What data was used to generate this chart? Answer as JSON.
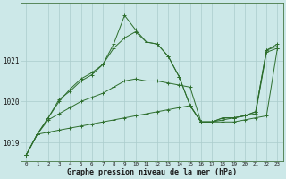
{
  "xlabel": "Graphe pression niveau de la mer (hPa)",
  "background_color": "#cce8e8",
  "grid_color": "#aacccc",
  "line_color": "#2d6e2d",
  "hours": [
    0,
    1,
    2,
    3,
    4,
    5,
    6,
    7,
    8,
    9,
    10,
    11,
    12,
    13,
    14,
    15,
    16,
    17,
    18,
    19,
    20,
    21,
    22,
    23
  ],
  "series": [
    [
      1018.7,
      1019.2,
      1019.25,
      1019.3,
      1019.35,
      1019.4,
      1019.45,
      1019.5,
      1019.55,
      1019.6,
      1019.65,
      1019.7,
      1019.75,
      1019.8,
      1019.85,
      1019.9,
      1019.5,
      1019.5,
      1019.5,
      1019.5,
      1019.55,
      1019.6,
      1019.65,
      1021.3
    ],
    [
      1018.7,
      1019.2,
      1019.55,
      1019.7,
      1019.85,
      1020.0,
      1020.1,
      1020.2,
      1020.35,
      1020.5,
      1020.55,
      1020.5,
      1020.5,
      1020.45,
      1020.4,
      1020.35,
      1019.5,
      1019.5,
      1019.55,
      1019.6,
      1019.65,
      1019.7,
      1021.2,
      1021.3
    ],
    [
      1018.7,
      1019.2,
      1019.6,
      1020.0,
      1020.3,
      1020.55,
      1020.7,
      1020.9,
      1021.3,
      1021.55,
      1021.7,
      1021.45,
      1021.4,
      1021.1,
      1020.6,
      1019.9,
      1019.5,
      1019.5,
      1019.6,
      1019.6,
      1019.65,
      1019.75,
      1021.25,
      1021.35
    ],
    [
      1018.7,
      1019.2,
      1019.6,
      1020.05,
      1020.25,
      1020.5,
      1020.65,
      1020.9,
      1021.4,
      1022.1,
      1021.75,
      1021.45,
      1021.4,
      1021.1,
      1020.6,
      1019.9,
      1019.5,
      1019.5,
      1019.6,
      1019.6,
      1019.65,
      1019.75,
      1021.25,
      1021.4
    ]
  ],
  "ylim": [
    1018.55,
    1022.4
  ],
  "yticks": [
    1019,
    1020,
    1021
  ],
  "xticks": [
    0,
    1,
    2,
    3,
    4,
    5,
    6,
    7,
    8,
    9,
    10,
    11,
    12,
    13,
    14,
    15,
    16,
    17,
    18,
    19,
    20,
    21,
    22,
    23
  ]
}
